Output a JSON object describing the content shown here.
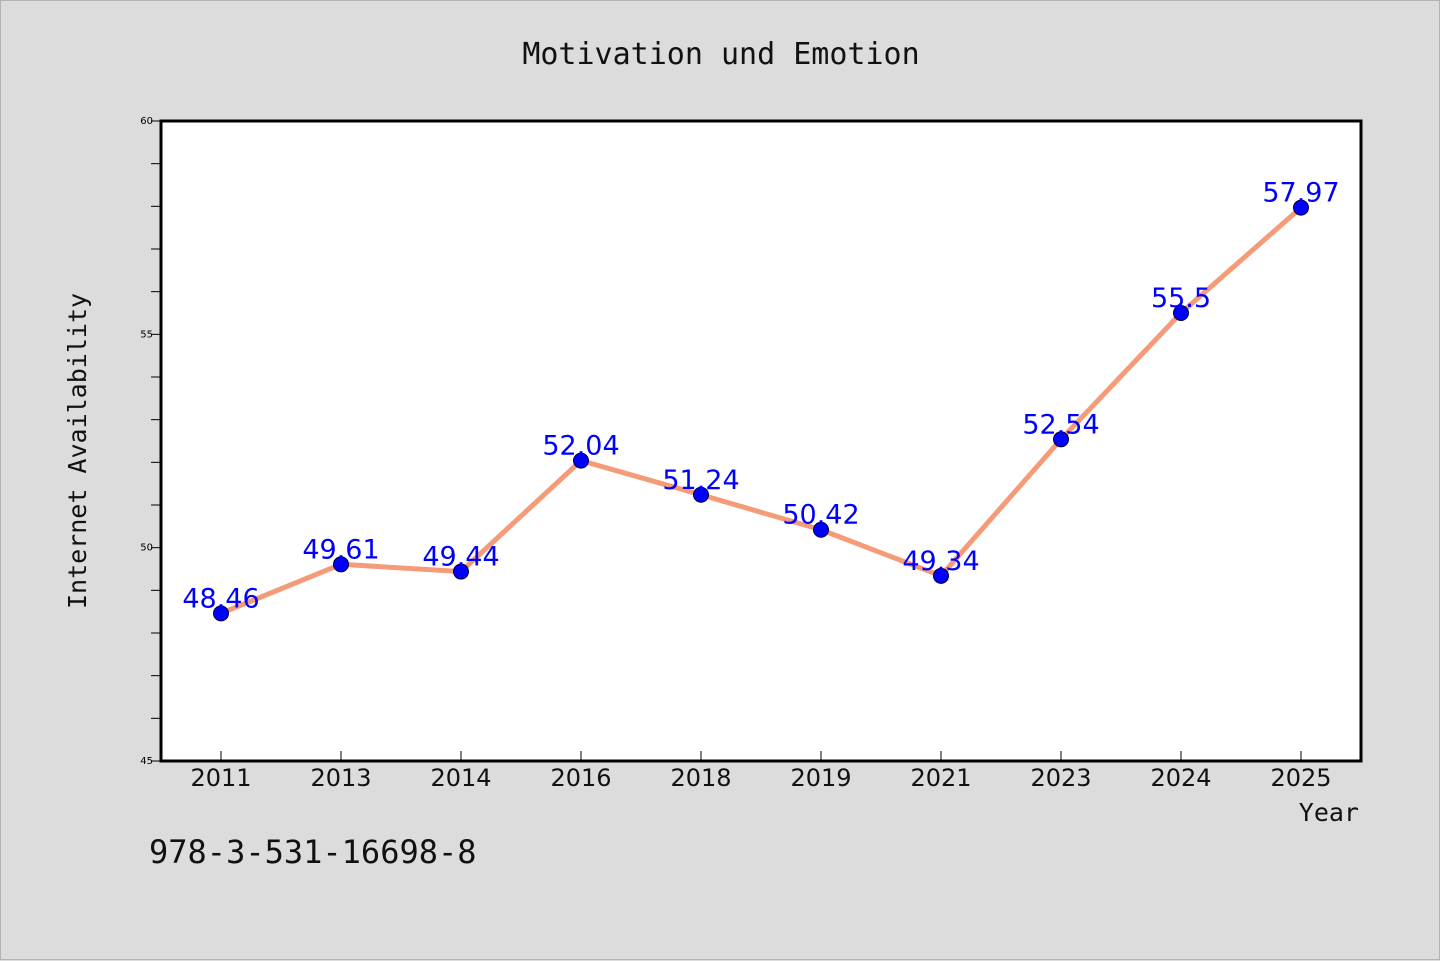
{
  "chart_data": {
    "type": "line",
    "title": "Motivation und Emotion",
    "xlabel": "Year",
    "ylabel": "Internet Availability",
    "categories": [
      "2011",
      "2013",
      "2014",
      "2016",
      "2018",
      "2019",
      "2021",
      "2023",
      "2024",
      "2025"
    ],
    "series": [
      {
        "values": [
          48.46,
          49.61,
          49.44,
          52.04,
          51.24,
          50.42,
          49.34,
          52.54,
          55.5,
          57.97
        ],
        "labels": [
          "48.46",
          "49.61",
          "49.44",
          "52.04",
          "51.24",
          "50.42",
          "49.34",
          "52.54",
          "55.5",
          "57.97"
        ],
        "line_color": "#f59b78",
        "marker_color": "#0000ff"
      }
    ],
    "ylim": [
      45,
      60
    ],
    "yticks": [
      "45",
      "50",
      "55",
      "60"
    ],
    "grid": false,
    "legend": "none"
  },
  "footer": {
    "isbn": "978-3-531-16698-8"
  },
  "colors": {
    "background": "#dcdcdc",
    "plot_background": "#ffffff",
    "label_color": "#0000ff"
  }
}
